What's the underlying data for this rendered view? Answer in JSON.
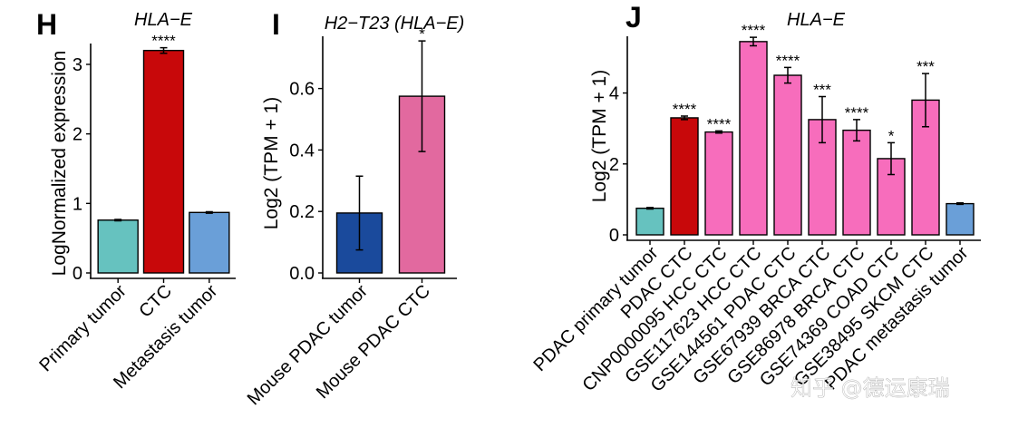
{
  "watermark": "知乎 @德运康瑞",
  "chart_data": [
    {
      "panel": "H",
      "type": "bar",
      "title": "HLA−E",
      "ylabel": "LogNormalized expression",
      "xlabel": "",
      "ylim": [
        0,
        3.3
      ],
      "yticks": [
        0,
        1,
        2,
        3
      ],
      "categories": [
        "Primary tumor",
        "CTC",
        "Metastasis tumor"
      ],
      "values": [
        0.76,
        3.2,
        0.87
      ],
      "errors": [
        0.01,
        0.04,
        0.01
      ],
      "colors": [
        "#66c2bf",
        "#c8080a",
        "#6a9fd8"
      ],
      "significance": [
        "",
        "****",
        ""
      ]
    },
    {
      "panel": "I",
      "type": "bar",
      "title": "H2−T23 (HLA−E)",
      "ylabel": "Log2 (TPM + 1)",
      "xlabel": "",
      "ylim": [
        0,
        0.77
      ],
      "yticks": [
        0.0,
        0.2,
        0.4,
        0.6
      ],
      "ytick_labels": [
        "0.0",
        "0.2",
        "0.4",
        "0.6"
      ],
      "categories": [
        "Mouse PDAC tumor",
        "Mouse  PDAC CTC"
      ],
      "values": [
        0.195,
        0.575
      ],
      "errors": [
        0.12,
        0.18
      ],
      "colors": [
        "#1a4a9c",
        "#e2699f"
      ],
      "significance": [
        "",
        "*"
      ]
    },
    {
      "panel": "J",
      "type": "bar",
      "title": "HLA−E",
      "ylabel": "Log2 (TPM + 1)",
      "xlabel": "",
      "ylim": [
        0,
        5.6
      ],
      "yticks": [
        0,
        2,
        4
      ],
      "categories": [
        "PDAC primary tumor",
        "PDAC CTC",
        "CNP0000095 HCC CTC",
        "GSE117623 HCC CTC",
        "GSE144561 PDAC CTC",
        "GSE67939 BRCA CTC",
        "GSE86978 BRCA CTC",
        "GSE74369 COAD CTC",
        "GSE38495 SKCM CTC",
        "PDAC metastasis tumor"
      ],
      "values": [
        0.75,
        3.3,
        2.9,
        5.45,
        4.5,
        3.25,
        2.95,
        2.15,
        3.8,
        0.88
      ],
      "errors": [
        0.02,
        0.05,
        0.03,
        0.12,
        0.22,
        0.65,
        0.3,
        0.45,
        0.75,
        0.02
      ],
      "colors": [
        "#66c2bf",
        "#c8080a",
        "#f76dbc",
        "#f76dbc",
        "#f76dbc",
        "#f76dbc",
        "#f76dbc",
        "#f76dbc",
        "#f76dbc",
        "#6a9fd8"
      ],
      "significance": [
        "",
        "****",
        "****",
        "****",
        "****",
        "***",
        "****",
        "*",
        "***",
        ""
      ]
    }
  ]
}
